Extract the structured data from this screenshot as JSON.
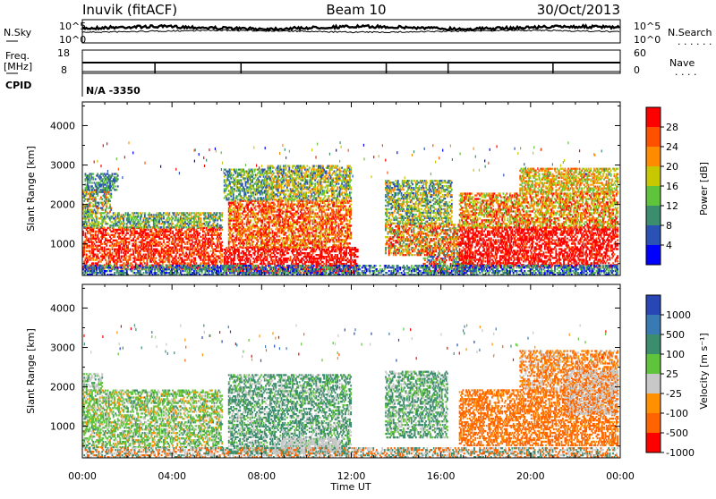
{
  "header": {
    "station": "Inuvik (fitACF)",
    "beam": "Beam 10",
    "date": "30/Oct/2013"
  },
  "status_panels": {
    "nsky_label": "N.Sky",
    "nsky_ticks": [
      "10^5",
      "10^0"
    ],
    "nsearch_label": "N.Search",
    "freq_label_1": "Freq.",
    "freq_label_2": "[MHz]",
    "freq_ticks": [
      "18",
      "8"
    ],
    "nave_label": "Nave",
    "nave_ticks": [
      "60",
      "0"
    ],
    "cpid_label": "CPID",
    "cpid_value": "N/A -3350",
    "series_color": "#000000"
  },
  "chart_data": [
    {
      "type": "heatmap",
      "name": "power",
      "ylabel": "Slant Range [km]",
      "ylim": [
        200,
        4600
      ],
      "yticks": [
        "1000",
        "2000",
        "3000",
        "4000"
      ],
      "colorbar_label": "Power [dB]",
      "colorbar_ticks": [
        "4",
        "8",
        "12",
        "16",
        "20",
        "24",
        "28"
      ],
      "colors": [
        "#0000ff",
        "#2a52b4",
        "#3c8c6e",
        "#5fc33b",
        "#c8c800",
        "#ff8c00",
        "#ff5000",
        "#ff0000"
      ]
    },
    {
      "type": "heatmap",
      "name": "velocity",
      "ylabel": "Slant Range [km]",
      "ylim": [
        200,
        4600
      ],
      "yticks": [
        "1000",
        "2000",
        "3000",
        "4000"
      ],
      "colorbar_label": "Velocity [m s⁻¹]",
      "colorbar_ticks": [
        "1000",
        "500",
        "100",
        "25",
        "-25",
        "-100",
        "-500",
        "-1000"
      ],
      "colors": [
        "#2846b4",
        "#3a7ab4",
        "#3c8c6e",
        "#5fc33b",
        "#c8c8c8",
        "#ff9000",
        "#ff6400",
        "#ff0000"
      ]
    }
  ],
  "time_axis": {
    "ticks": [
      "00:00",
      "04:00",
      "08:00",
      "12:00",
      "16:00",
      "20:00",
      "00:00"
    ],
    "xlabel": "Time UT"
  }
}
